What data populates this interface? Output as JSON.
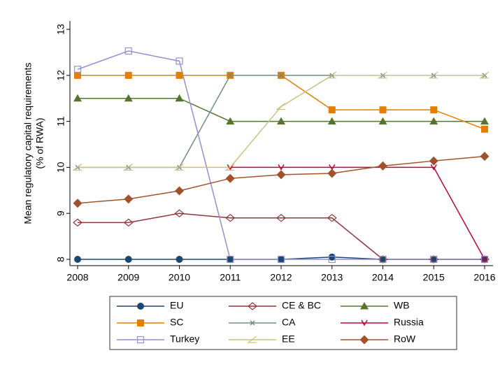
{
  "chart_data": {
    "type": "line",
    "y_label": [
      "Mean regulatory capital requirements",
      "(% of RWA)"
    ],
    "x": [
      2008,
      2009,
      2010,
      2011,
      2012,
      2013,
      2014,
      2015,
      2016
    ],
    "xlim": [
      2008,
      2016
    ],
    "xticks": [
      2008,
      2009,
      2010,
      2011,
      2012,
      2013,
      2014,
      2015,
      2016
    ],
    "ylim": [
      8,
      13
    ],
    "yticks": [
      8,
      9,
      10,
      11,
      12,
      13
    ],
    "grid": false,
    "legend": "bottom",
    "series": [
      {
        "name": "EU",
        "color": "#1a476f",
        "marker": "circle",
        "values": [
          8,
          8,
          8,
          8,
          8,
          8.05,
          8,
          8,
          8
        ]
      },
      {
        "name": "CE & BC",
        "color": "#90353b",
        "marker": "hollow-diamond",
        "values": [
          8.8,
          8.8,
          9,
          8.9,
          8.9,
          8.9,
          8,
          8,
          8
        ]
      },
      {
        "name": "WB",
        "color": "#55752f",
        "marker": "triangle",
        "values": [
          11.5,
          11.5,
          11.5,
          11,
          11,
          11,
          11,
          11,
          11
        ]
      },
      {
        "name": "SC",
        "color": "#e37e00",
        "marker": "square",
        "values": [
          12,
          12,
          12,
          12,
          12,
          11.25,
          11.25,
          11.25,
          10.83
        ]
      },
      {
        "name": "CA",
        "color": "#6e8e84",
        "marker": "x",
        "values": [
          10,
          10,
          10,
          12,
          12,
          12,
          12,
          12,
          12
        ]
      },
      {
        "name": "Russia",
        "color": "#c10534",
        "marker": "v",
        "values": [
          null,
          null,
          null,
          10,
          10,
          10,
          10,
          10,
          8
        ]
      },
      {
        "name": "Turkey",
        "color": "#938dd2",
        "marker": "hollow-square",
        "values": [
          12.13,
          12.53,
          12.31,
          8,
          8,
          8,
          8,
          8,
          8
        ]
      },
      {
        "name": "EE",
        "color": "#cac27e",
        "marker": "hollow-triangle",
        "values": [
          10,
          10,
          10,
          10,
          11.32,
          12,
          12,
          12,
          12
        ]
      },
      {
        "name": "RoW",
        "color": "#a0522d",
        "marker": "diamond",
        "values": [
          9.22,
          9.31,
          9.49,
          9.76,
          9.84,
          9.87,
          10.03,
          10.14,
          10.24
        ]
      }
    ]
  }
}
